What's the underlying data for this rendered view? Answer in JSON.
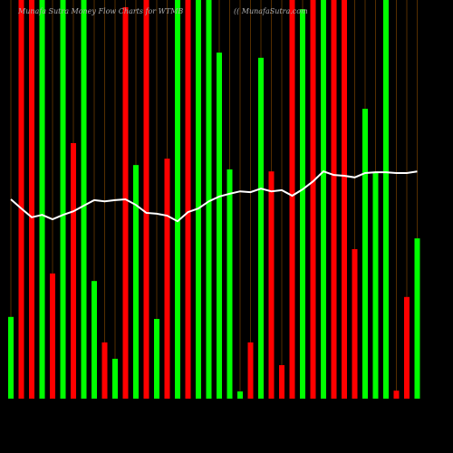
{
  "chart_data": {
    "type": "bar",
    "title": "Munafa Sutra Money Flow Charts for WTMB",
    "subtitle": "(( MunafaSutra.com",
    "values": [
      20.5,
      100,
      100,
      100,
      31.4,
      100,
      64.1,
      100,
      29.5,
      14.1,
      10,
      98.2,
      58.6,
      100,
      20,
      60.2,
      100,
      100,
      100,
      100,
      86.8,
      57.5,
      1.8,
      14.1,
      85.5,
      57,
      8.4,
      100,
      97.7,
      100,
      100,
      100,
      100,
      37.5,
      72.7,
      56.8,
      100,
      2,
      25.5,
      40.2
    ],
    "colors": [
      "#00ff00",
      "#ff0000",
      "#ff0000",
      "#00ff00",
      "#ff0000",
      "#00ff00",
      "#ff0000",
      "#00ff00",
      "#00ff00",
      "#ff0000",
      "#00ff00",
      "#ff0000",
      "#00ff00",
      "#ff0000",
      "#00ff00",
      "#ff0000",
      "#00ff00",
      "#ff0000",
      "#00ff00",
      "#00ff00",
      "#00ff00",
      "#00ff00",
      "#00ff00",
      "#ff0000",
      "#00ff00",
      "#ff0000",
      "#ff0000",
      "#ff0000",
      "#00ff00",
      "#ff0000",
      "#00ff00",
      "#ff0000",
      "#ff0000",
      "#ff0000",
      "#00ff00",
      "#00ff00",
      "#00ff00",
      "#ff0000",
      "#ff0000",
      "#00ff00"
    ],
    "line_values": [
      50,
      47.7,
      45.5,
      46.1,
      45,
      46.1,
      47,
      48.4,
      49.8,
      49.5,
      49.8,
      50,
      48.6,
      46.6,
      46.4,
      45.9,
      44.5,
      46.8,
      47.7,
      49.5,
      50.7,
      51.4,
      52,
      51.8,
      52.7,
      52,
      52.3,
      50.9,
      52.5,
      54.5,
      57,
      56.1,
      55.9,
      55.5,
      56.6,
      56.8,
      56.8,
      56.6,
      56.6,
      57
    ],
    "line_color": "#ffffff",
    "ylim": [
      0,
      100
    ]
  }
}
